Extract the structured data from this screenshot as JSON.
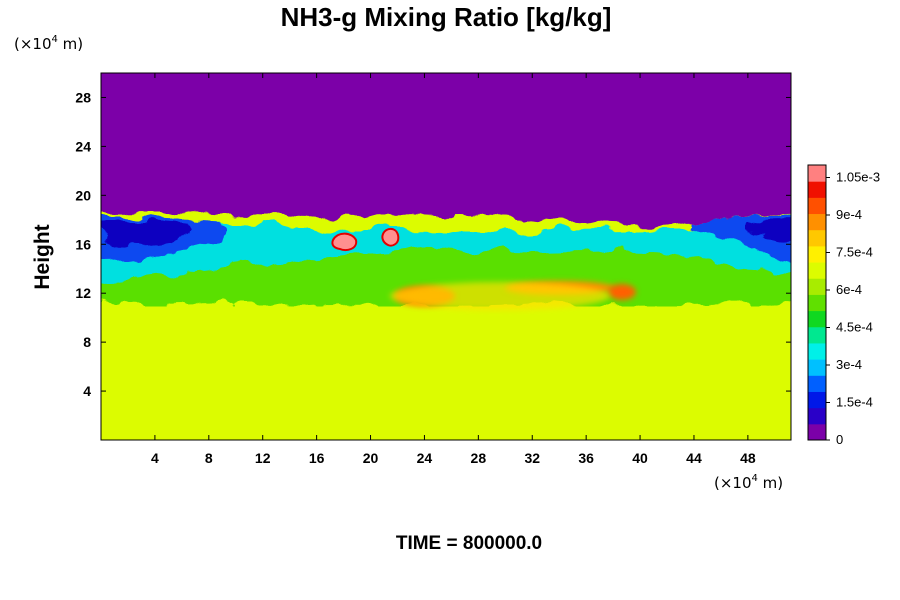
{
  "chart_data": {
    "type": "heatmap",
    "title": "NH3-g Mixing Ratio [kg/kg]",
    "ylabel": "Height",
    "xlabel": "",
    "x_unit": {
      "prefix": "(×10",
      "exp": "4",
      "suffix": " m)"
    },
    "y_unit": {
      "prefix": "(×10",
      "exp": "4",
      "suffix": " m)"
    },
    "xlim": [
      0,
      51.2
    ],
    "ylim": [
      0,
      30
    ],
    "x_ticks": [
      4,
      8,
      12,
      16,
      20,
      24,
      28,
      32,
      36,
      40,
      44,
      48
    ],
    "x_tick_labels": [
      "4",
      "8",
      "12",
      "16",
      "20",
      "24",
      "28",
      "32",
      "36",
      "40",
      "44",
      "48"
    ],
    "y_ticks": [
      4,
      8,
      12,
      16,
      20,
      24,
      28
    ],
    "y_tick_labels": [
      "4",
      "8",
      "12",
      "16",
      "20",
      "24",
      "28"
    ],
    "regions": [
      {
        "name": "upper",
        "y_range": [
          18,
          30
        ],
        "value": 0
      },
      {
        "name": "lower",
        "y_range": [
          0,
          11
        ],
        "value": 0.00074
      }
    ],
    "colorbar": {
      "min": 0,
      "max": 0.0011,
      "ticks": [
        0,
        0.00015,
        0.0003,
        0.00045,
        0.0006,
        0.00075,
        0.0009,
        0.00105
      ],
      "tick_labels": [
        "0",
        "1.5e-4",
        "3e-4",
        "4.5e-4",
        "6e-4",
        "7.5e-4",
        "9e-4",
        "1.05e-3"
      ],
      "colors": [
        "#7b00a8",
        "#2a00c8",
        "#0018e8",
        "#0060ff",
        "#00c0ff",
        "#00f0e8",
        "#00e890",
        "#10d820",
        "#60e000",
        "#a8ec00",
        "#dcfc00",
        "#fff000",
        "#ffc800",
        "#ff9000",
        "#ff5000",
        "#f01000",
        "#ff8080"
      ]
    },
    "grid": false,
    "legend": "right (colorbar)"
  },
  "footer": {
    "time_label": "TIME = 800000.0"
  }
}
